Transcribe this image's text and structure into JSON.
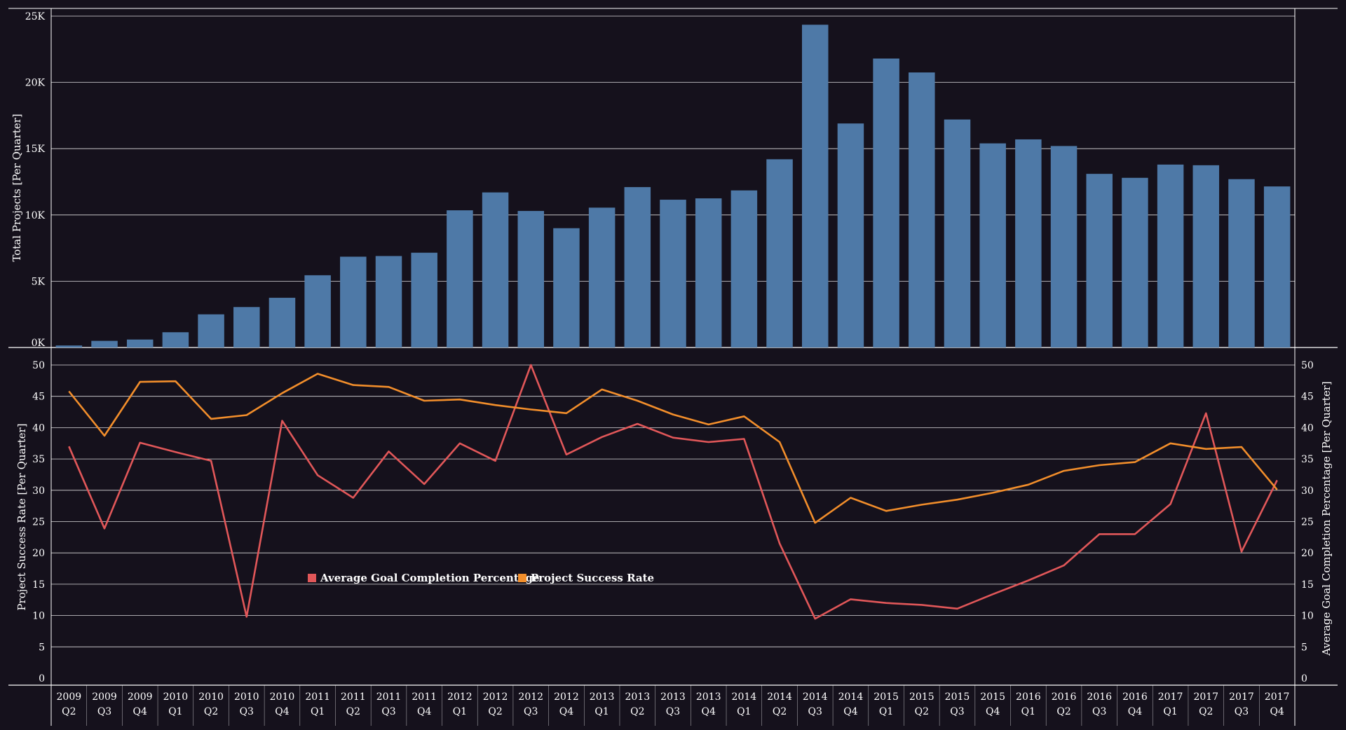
{
  "colors": {
    "background": "#15111c",
    "bar": "#4e79a7",
    "goal_line": "#e15759",
    "success_line": "#f28e2b",
    "grid": "#ffffff",
    "text": "#ffffff"
  },
  "chart_data": [
    {
      "type": "bar",
      "ylabel": "Total Projects [Per Quarter]",
      "ylim": [
        0,
        25000
      ],
      "yticks": [
        "0K",
        "5K",
        "10K",
        "15K",
        "20K",
        "25K"
      ],
      "grid": true,
      "categories": [
        [
          "2009",
          "Q2"
        ],
        [
          "2009",
          "Q3"
        ],
        [
          "2009",
          "Q4"
        ],
        [
          "2010",
          "Q1"
        ],
        [
          "2010",
          "Q2"
        ],
        [
          "2010",
          "Q3"
        ],
        [
          "2010",
          "Q4"
        ],
        [
          "2011",
          "Q1"
        ],
        [
          "2011",
          "Q2"
        ],
        [
          "2011",
          "Q3"
        ],
        [
          "2011",
          "Q4"
        ],
        [
          "2012",
          "Q1"
        ],
        [
          "2012",
          "Q2"
        ],
        [
          "2012",
          "Q3"
        ],
        [
          "2012",
          "Q4"
        ],
        [
          "2013",
          "Q1"
        ],
        [
          "2013",
          "Q2"
        ],
        [
          "2013",
          "Q3"
        ],
        [
          "2013",
          "Q4"
        ],
        [
          "2014",
          "Q1"
        ],
        [
          "2014",
          "Q2"
        ],
        [
          "2014",
          "Q3"
        ],
        [
          "2014",
          "Q4"
        ],
        [
          "2015",
          "Q1"
        ],
        [
          "2015",
          "Q2"
        ],
        [
          "2015",
          "Q3"
        ],
        [
          "2015",
          "Q4"
        ],
        [
          "2016",
          "Q1"
        ],
        [
          "2016",
          "Q2"
        ],
        [
          "2016",
          "Q3"
        ],
        [
          "2016",
          "Q4"
        ],
        [
          "2017",
          "Q1"
        ],
        [
          "2017",
          "Q2"
        ],
        [
          "2017",
          "Q3"
        ],
        [
          "2017",
          "Q4"
        ]
      ],
      "values": [
        150,
        500,
        600,
        1150,
        2500,
        3050,
        3750,
        5450,
        6850,
        6900,
        7150,
        10350,
        11700,
        10300,
        9000,
        10550,
        12100,
        11150,
        11250,
        11850,
        14200,
        24350,
        16900,
        21800,
        20750,
        17200,
        15400,
        15700,
        15200,
        13100,
        12800,
        13800,
        13750,
        12700,
        12150
      ]
    },
    {
      "type": "line",
      "ylabel_left": "Project Success Rate [Per Quarter]",
      "ylabel_right": "Average Goal Completion Percentage [Per Quarter]",
      "ylim": [
        0,
        50
      ],
      "yticks": [
        "0",
        "5",
        "10",
        "15",
        "20",
        "25",
        "30",
        "35",
        "40",
        "45",
        "50"
      ],
      "grid": true,
      "legend_position": "center-left",
      "series": [
        {
          "name": "Average Goal Completion Percentage",
          "values": [
            37,
            23.9,
            37.6,
            36.1,
            34.7,
            9.8,
            41.1,
            32.4,
            28.8,
            36.2,
            31,
            37.5,
            34.7,
            50,
            35.7,
            38.5,
            40.6,
            38.4,
            37.7,
            38.2,
            21.5,
            9.5,
            12.6,
            12,
            11.7,
            11.1,
            13.4,
            15.6,
            18,
            23,
            23,
            27.8,
            42.3,
            20.2,
            31.6
          ]
        },
        {
          "name": "Project Success Rate",
          "values": [
            45.8,
            38.7,
            47.3,
            47.4,
            41.4,
            42,
            45.5,
            48.6,
            46.8,
            46.5,
            44.3,
            44.5,
            43.6,
            42.9,
            42.3,
            46.1,
            44.3,
            42.1,
            40.5,
            41.8,
            37.7,
            24.8,
            28.8,
            26.7,
            27.7,
            28.5,
            29.6,
            30.9,
            33.1,
            34,
            34.5,
            37.5,
            36.6,
            36.9,
            30.1
          ]
        }
      ]
    }
  ]
}
